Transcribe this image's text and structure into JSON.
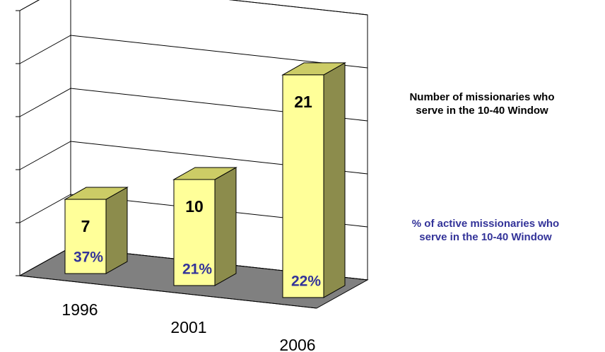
{
  "chart_data": {
    "type": "bar",
    "categories": [
      "1996",
      "2001",
      "2006"
    ],
    "series": [
      {
        "name": "Number of missionaries who serve in the 10-40 Window",
        "color": "#ffff99",
        "values": [
          7,
          10,
          21
        ]
      },
      {
        "name": "% of active missionaries who serve in the 10-40 Window",
        "color": "#333399",
        "values": [
          37,
          21,
          22
        ],
        "value_labels": [
          "37%",
          "21%",
          "22%"
        ]
      }
    ],
    "ylim": [
      0,
      25
    ],
    "yticks": [
      0,
      5,
      10,
      15,
      20,
      25
    ],
    "grid": true
  }
}
